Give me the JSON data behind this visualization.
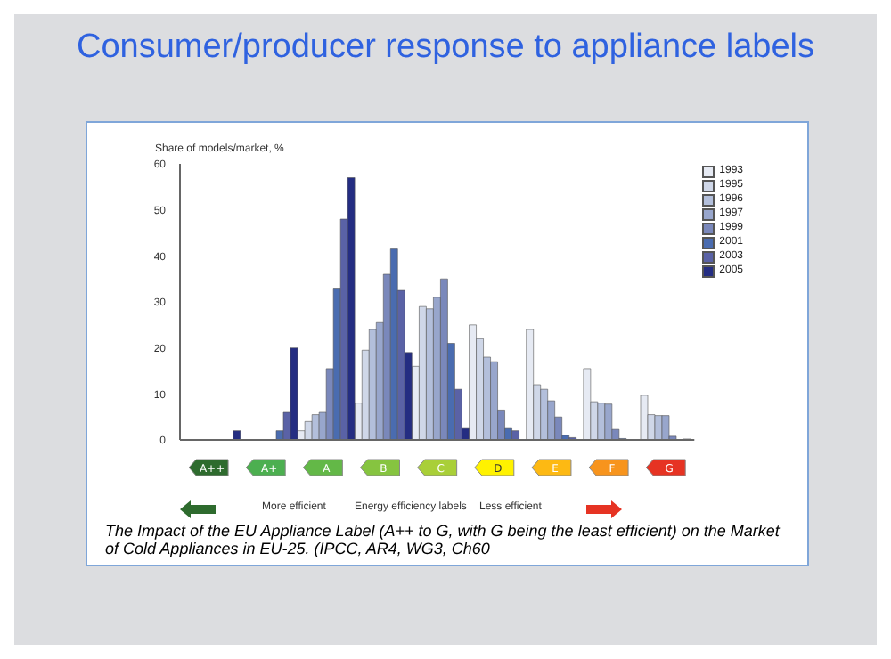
{
  "chart_data": {
    "type": "bar",
    "title": "Consumer/producer response to appliance labels",
    "ylabel": "Share of models/market, %",
    "categories": [
      "A++",
      "A+",
      "A",
      "B",
      "C",
      "D",
      "E",
      "F",
      "G"
    ],
    "series": [
      {
        "name": "1993",
        "color": "#e6eaf3",
        "values": [
          0,
          0,
          2,
          8,
          16,
          25,
          24,
          15.5,
          9.7
        ]
      },
      {
        "name": "1995",
        "color": "#cfd7e8",
        "values": [
          0,
          0,
          4,
          19.5,
          29,
          22,
          12,
          8.3,
          5.5
        ]
      },
      {
        "name": "1996",
        "color": "#b3bfdb",
        "values": [
          0,
          0,
          5.5,
          24,
          28.5,
          18,
          11,
          8,
          5.3
        ]
      },
      {
        "name": "1997",
        "color": "#98a6cc",
        "values": [
          0,
          0,
          6,
          25.5,
          31,
          17,
          8.5,
          7.8,
          5.3
        ]
      },
      {
        "name": "1999",
        "color": "#7a88bb",
        "values": [
          0,
          0,
          15.5,
          36,
          35,
          6.5,
          5,
          2.3,
          0.8
        ]
      },
      {
        "name": "2001",
        "color": "#4a6cb0",
        "values": [
          0,
          2,
          33,
          41.5,
          21,
          2.5,
          1,
          0.3,
          0
        ]
      },
      {
        "name": "2003",
        "color": "#5a62a6",
        "values": [
          0,
          6,
          48,
          32.5,
          11,
          2,
          0.5,
          0,
          0.2
        ]
      },
      {
        "name": "2005",
        "color": "#242d82",
        "values": [
          2,
          20,
          57,
          19,
          2.5,
          0,
          0,
          0,
          0
        ]
      }
    ],
    "ylim": [
      0,
      60
    ],
    "yticks": [
      0,
      10,
      20,
      30,
      40,
      50,
      60
    ],
    "legend": "top right",
    "annotations": [
      "More efficient",
      "Energy efficiency labels",
      "Less efficient",
      "The Impact of the EU Appliance Label (A++ to G, with G being the least efficient) on the Market of Cold Appliances in EU-25. (IPCC, AR4, WG3, Ch60"
    ]
  }
}
